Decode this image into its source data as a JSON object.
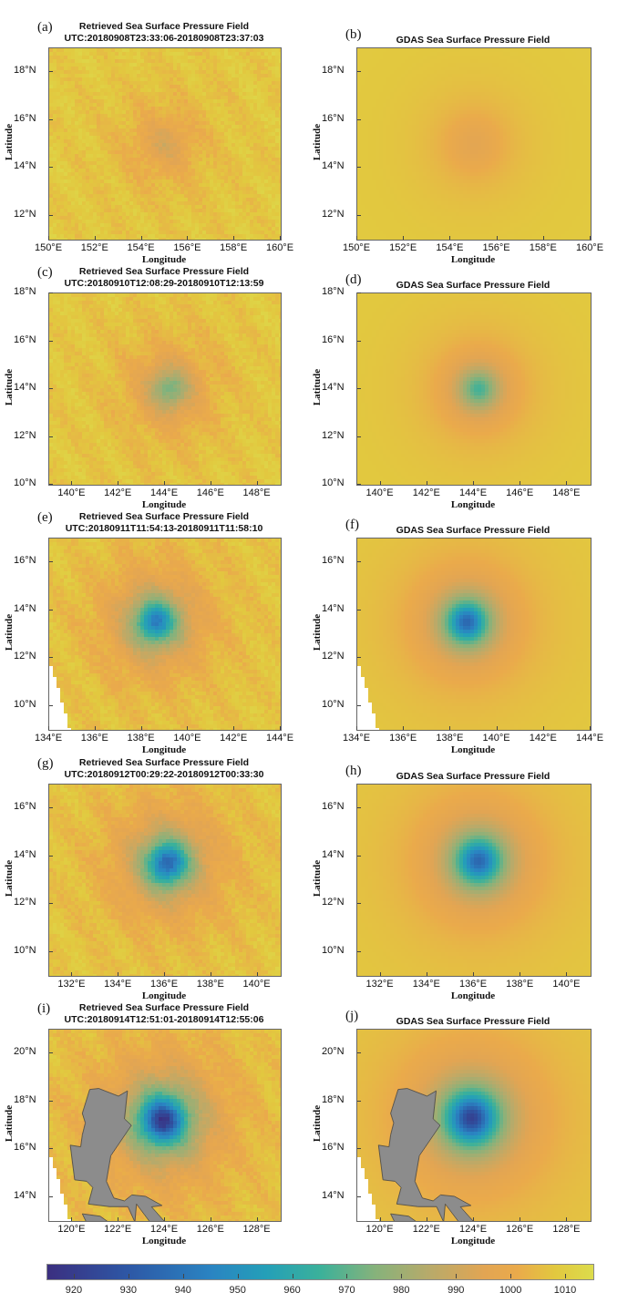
{
  "chart_data": {
    "type": "heatmap",
    "variable": "sea surface pressure",
    "xlabel": "Longitude",
    "ylabel": "Latitude",
    "colorbar": {
      "range": [
        915,
        1015
      ],
      "ticks": [
        "920",
        "930",
        "940",
        "950",
        "960",
        "970",
        "980",
        "990",
        "1000",
        "1010"
      ]
    },
    "colormap_stops": [
      {
        "v": 915,
        "c": "#3b2f80"
      },
      {
        "v": 930,
        "c": "#2d58a6"
      },
      {
        "v": 945,
        "c": "#2a84c2"
      },
      {
        "v": 955,
        "c": "#249fb8"
      },
      {
        "v": 965,
        "c": "#3bb19a"
      },
      {
        "v": 975,
        "c": "#86b27b"
      },
      {
        "v": 985,
        "c": "#b8aa6a"
      },
      {
        "v": 995,
        "c": "#e2a553"
      },
      {
        "v": 1001,
        "c": "#eaaa4b"
      },
      {
        "v": 1008,
        "c": "#e2c83f"
      },
      {
        "v": 1015,
        "c": "#dcdc4c"
      }
    ],
    "panels": [
      {
        "label": "(a)",
        "title": "Retrieved Sea Surface Pressure Field",
        "subtitle": "UTC:20180908T23:33:06-20180908T23:37:03",
        "xlim": [
          150,
          160
        ],
        "ylim": [
          11,
          19
        ],
        "xticks": [
          "150°E",
          "152°E",
          "154°E",
          "156°E",
          "158°E",
          "160°E"
        ],
        "xtick_values": [
          150,
          152,
          154,
          156,
          158,
          160
        ],
        "yticks": [
          "12°N",
          "14°N",
          "16°N",
          "18°N"
        ],
        "ytick_values": [
          12,
          14,
          16,
          18
        ],
        "center": [
          155.0,
          15.0
        ],
        "min_pressure": 993,
        "radius_deg": 1.2,
        "retrieved": true,
        "missing": false,
        "land": false
      },
      {
        "label": "(b)",
        "title": "GDAS Sea Surface Pressure Field",
        "subtitle": "",
        "xlim": [
          150,
          160
        ],
        "ylim": [
          11,
          19
        ],
        "xticks": [
          "150°E",
          "152°E",
          "154°E",
          "156°E",
          "158°E",
          "160°E"
        ],
        "xtick_values": [
          150,
          152,
          154,
          156,
          158,
          160
        ],
        "yticks": [
          "12°N",
          "14°N",
          "16°N",
          "18°N"
        ],
        "ytick_values": [
          12,
          14,
          16,
          18
        ],
        "center": [
          155.0,
          15.0
        ],
        "min_pressure": 996,
        "radius_deg": 1.4,
        "retrieved": false,
        "missing": false,
        "land": false
      },
      {
        "label": "(c)",
        "title": "Retrieved Sea Surface Pressure Field",
        "subtitle": "UTC:20180910T12:08:29-20180910T12:13:59",
        "xlim": [
          139,
          149
        ],
        "ylim": [
          10,
          18
        ],
        "xticks": [
          "140°E",
          "142°E",
          "144°E",
          "146°E",
          "148°E"
        ],
        "xtick_values": [
          140,
          142,
          144,
          146,
          148
        ],
        "yticks": [
          "10°N",
          "12°N",
          "14°N",
          "16°N",
          "18°N"
        ],
        "ytick_values": [
          10,
          12,
          14,
          16,
          18
        ],
        "center": [
          144.2,
          14.0
        ],
        "min_pressure": 972,
        "radius_deg": 0.9,
        "retrieved": true,
        "missing": false,
        "land": false
      },
      {
        "label": "(d)",
        "title": "GDAS Sea Surface Pressure Field",
        "subtitle": "",
        "xlim": [
          139,
          149
        ],
        "ylim": [
          10,
          18
        ],
        "xticks": [
          "140°E",
          "142°E",
          "144°E",
          "146°E",
          "148°E"
        ],
        "xtick_values": [
          140,
          142,
          144,
          146,
          148
        ],
        "yticks": [
          "10°N",
          "12°N",
          "14°N",
          "16°N",
          "18°N"
        ],
        "ytick_values": [
          10,
          12,
          14,
          16,
          18
        ],
        "center": [
          144.2,
          14.0
        ],
        "min_pressure": 966,
        "radius_deg": 0.9,
        "retrieved": false,
        "missing": false,
        "land": false
      },
      {
        "label": "(e)",
        "title": "Retrieved Sea Surface Pressure Field",
        "subtitle": "UTC:20180911T11:54:13-20180911T11:58:10",
        "xlim": [
          134,
          144
        ],
        "ylim": [
          9,
          17
        ],
        "xticks": [
          "134°E",
          "136°E",
          "138°E",
          "140°E",
          "142°E",
          "144°E"
        ],
        "xtick_values": [
          134,
          136,
          138,
          140,
          142,
          144
        ],
        "yticks": [
          "10°N",
          "12°N",
          "14°N",
          "16°N"
        ],
        "ytick_values": [
          10,
          12,
          14,
          16
        ],
        "center": [
          138.6,
          13.5
        ],
        "min_pressure": 942,
        "radius_deg": 0.9,
        "retrieved": true,
        "missing": true,
        "land": false
      },
      {
        "label": "(f)",
        "title": "GDAS Sea Surface Pressure Field",
        "subtitle": "",
        "xlim": [
          134,
          144
        ],
        "ylim": [
          9,
          17
        ],
        "xticks": [
          "134°E",
          "136°E",
          "138°E",
          "140°E",
          "142°E",
          "144°E"
        ],
        "xtick_values": [
          134,
          136,
          138,
          140,
          142,
          144
        ],
        "yticks": [
          "10°N",
          "12°N",
          "14°N",
          "16°N"
        ],
        "ytick_values": [
          10,
          12,
          14,
          16
        ],
        "center": [
          138.7,
          13.5
        ],
        "min_pressure": 935,
        "radius_deg": 0.9,
        "retrieved": false,
        "missing": true,
        "land": false
      },
      {
        "label": "(g)",
        "title": "Retrieved Sea Surface Pressure Field",
        "subtitle": "UTC:20180912T00:29:22-20180912T00:33:30",
        "xlim": [
          131,
          141
        ],
        "ylim": [
          9,
          17
        ],
        "xticks": [
          "132°E",
          "134°E",
          "136°E",
          "138°E",
          "140°E"
        ],
        "xtick_values": [
          132,
          134,
          136,
          138,
          140
        ],
        "yticks": [
          "10°N",
          "12°N",
          "14°N",
          "16°N"
        ],
        "ytick_values": [
          10,
          12,
          14,
          16
        ],
        "center": [
          136.1,
          13.7
        ],
        "min_pressure": 933,
        "radius_deg": 0.9,
        "retrieved": true,
        "missing": false,
        "land": false
      },
      {
        "label": "(h)",
        "title": "GDAS Sea Surface Pressure Field",
        "subtitle": "",
        "xlim": [
          131,
          141
        ],
        "ylim": [
          9,
          17
        ],
        "xticks": [
          "132°E",
          "134°E",
          "136°E",
          "138°E",
          "140°E"
        ],
        "xtick_values": [
          132,
          134,
          136,
          138,
          140
        ],
        "yticks": [
          "10°N",
          "12°N",
          "14°N",
          "16°N"
        ],
        "ytick_values": [
          10,
          12,
          14,
          16
        ],
        "center": [
          136.2,
          13.8
        ],
        "min_pressure": 935,
        "radius_deg": 1.0,
        "retrieved": false,
        "missing": false,
        "land": false
      },
      {
        "label": "(i)",
        "title": "Retrieved Sea Surface Pressure Field",
        "subtitle": "UTC:20180914T12:51:01-20180914T12:55:06",
        "xlim": [
          119,
          129
        ],
        "ylim": [
          13,
          21
        ],
        "xticks": [
          "120°E",
          "122°E",
          "124°E",
          "126°E",
          "128°E"
        ],
        "xtick_values": [
          120,
          122,
          124,
          126,
          128
        ],
        "yticks": [
          "14°N",
          "16°N",
          "18°N",
          "20°N"
        ],
        "ytick_values": [
          14,
          16,
          18,
          20
        ],
        "center": [
          123.9,
          17.2
        ],
        "min_pressure": 918,
        "radius_deg": 1.0,
        "retrieved": true,
        "missing": true,
        "land": true
      },
      {
        "label": "(j)",
        "title": "GDAS Sea Surface Pressure Field",
        "subtitle": "",
        "xlim": [
          119,
          129
        ],
        "ylim": [
          13,
          21
        ],
        "xticks": [
          "120°E",
          "122°E",
          "124°E",
          "126°E",
          "128°E"
        ],
        "xtick_values": [
          120,
          122,
          124,
          126,
          128
        ],
        "yticks": [
          "14°N",
          "16°N",
          "18°N",
          "20°N"
        ],
        "ytick_values": [
          14,
          16,
          18,
          20
        ],
        "center": [
          123.9,
          17.3
        ],
        "min_pressure": 922,
        "radius_deg": 1.1,
        "retrieved": false,
        "missing": true,
        "land": true
      }
    ]
  }
}
